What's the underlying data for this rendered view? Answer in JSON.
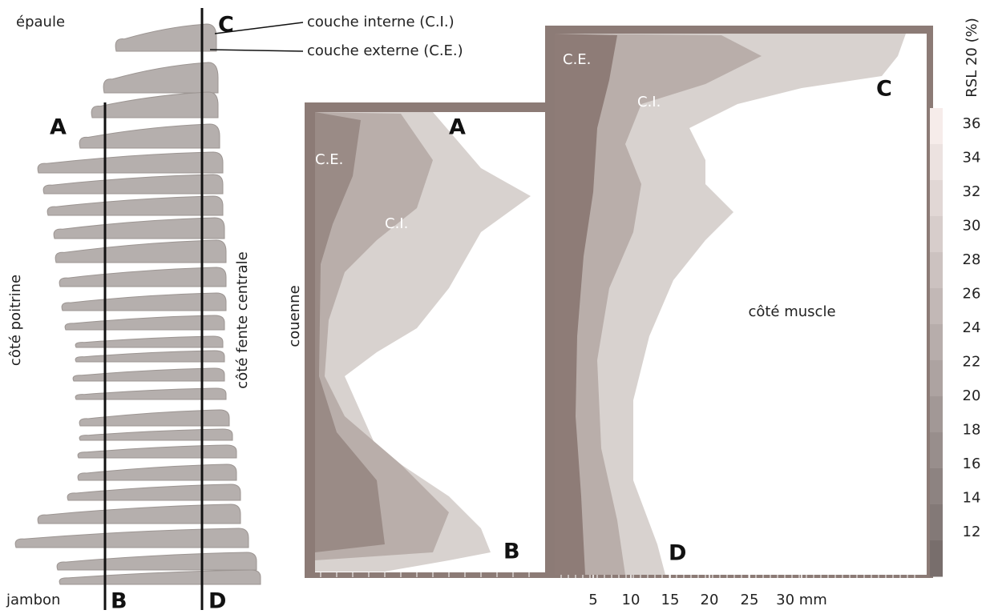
{
  "left": {
    "top_label": "épaule",
    "bottom_label": "jambon",
    "left_side_label": "côté poitrine",
    "right_side_label": "côté fente centrale",
    "inner_layer_label": "couche interne (C.I.)",
    "outer_layer_label": "couche externe (C.E.)",
    "cut_labels": [
      "A",
      "B",
      "C",
      "D"
    ]
  },
  "panel_ab": {
    "side_label": "couenne",
    "outer_layer": "C.E.",
    "inner_layer": "C.I.",
    "top": "A",
    "bottom": "B"
  },
  "panel_cd": {
    "outer_layer": "C.E.",
    "inner_layer": "C.I.",
    "top": "C",
    "bottom": "D",
    "region_label": "côté muscle"
  },
  "x_axis": {
    "ticks": [
      "5",
      "10",
      "15",
      "20",
      "25",
      "30 mm"
    ]
  },
  "colorbar": {
    "title": "RSL 20 (%)",
    "labels": [
      "36",
      "34",
      "32",
      "30",
      "28",
      "26",
      "24",
      "22",
      "20",
      "18",
      "16",
      "14",
      "12"
    ]
  }
}
